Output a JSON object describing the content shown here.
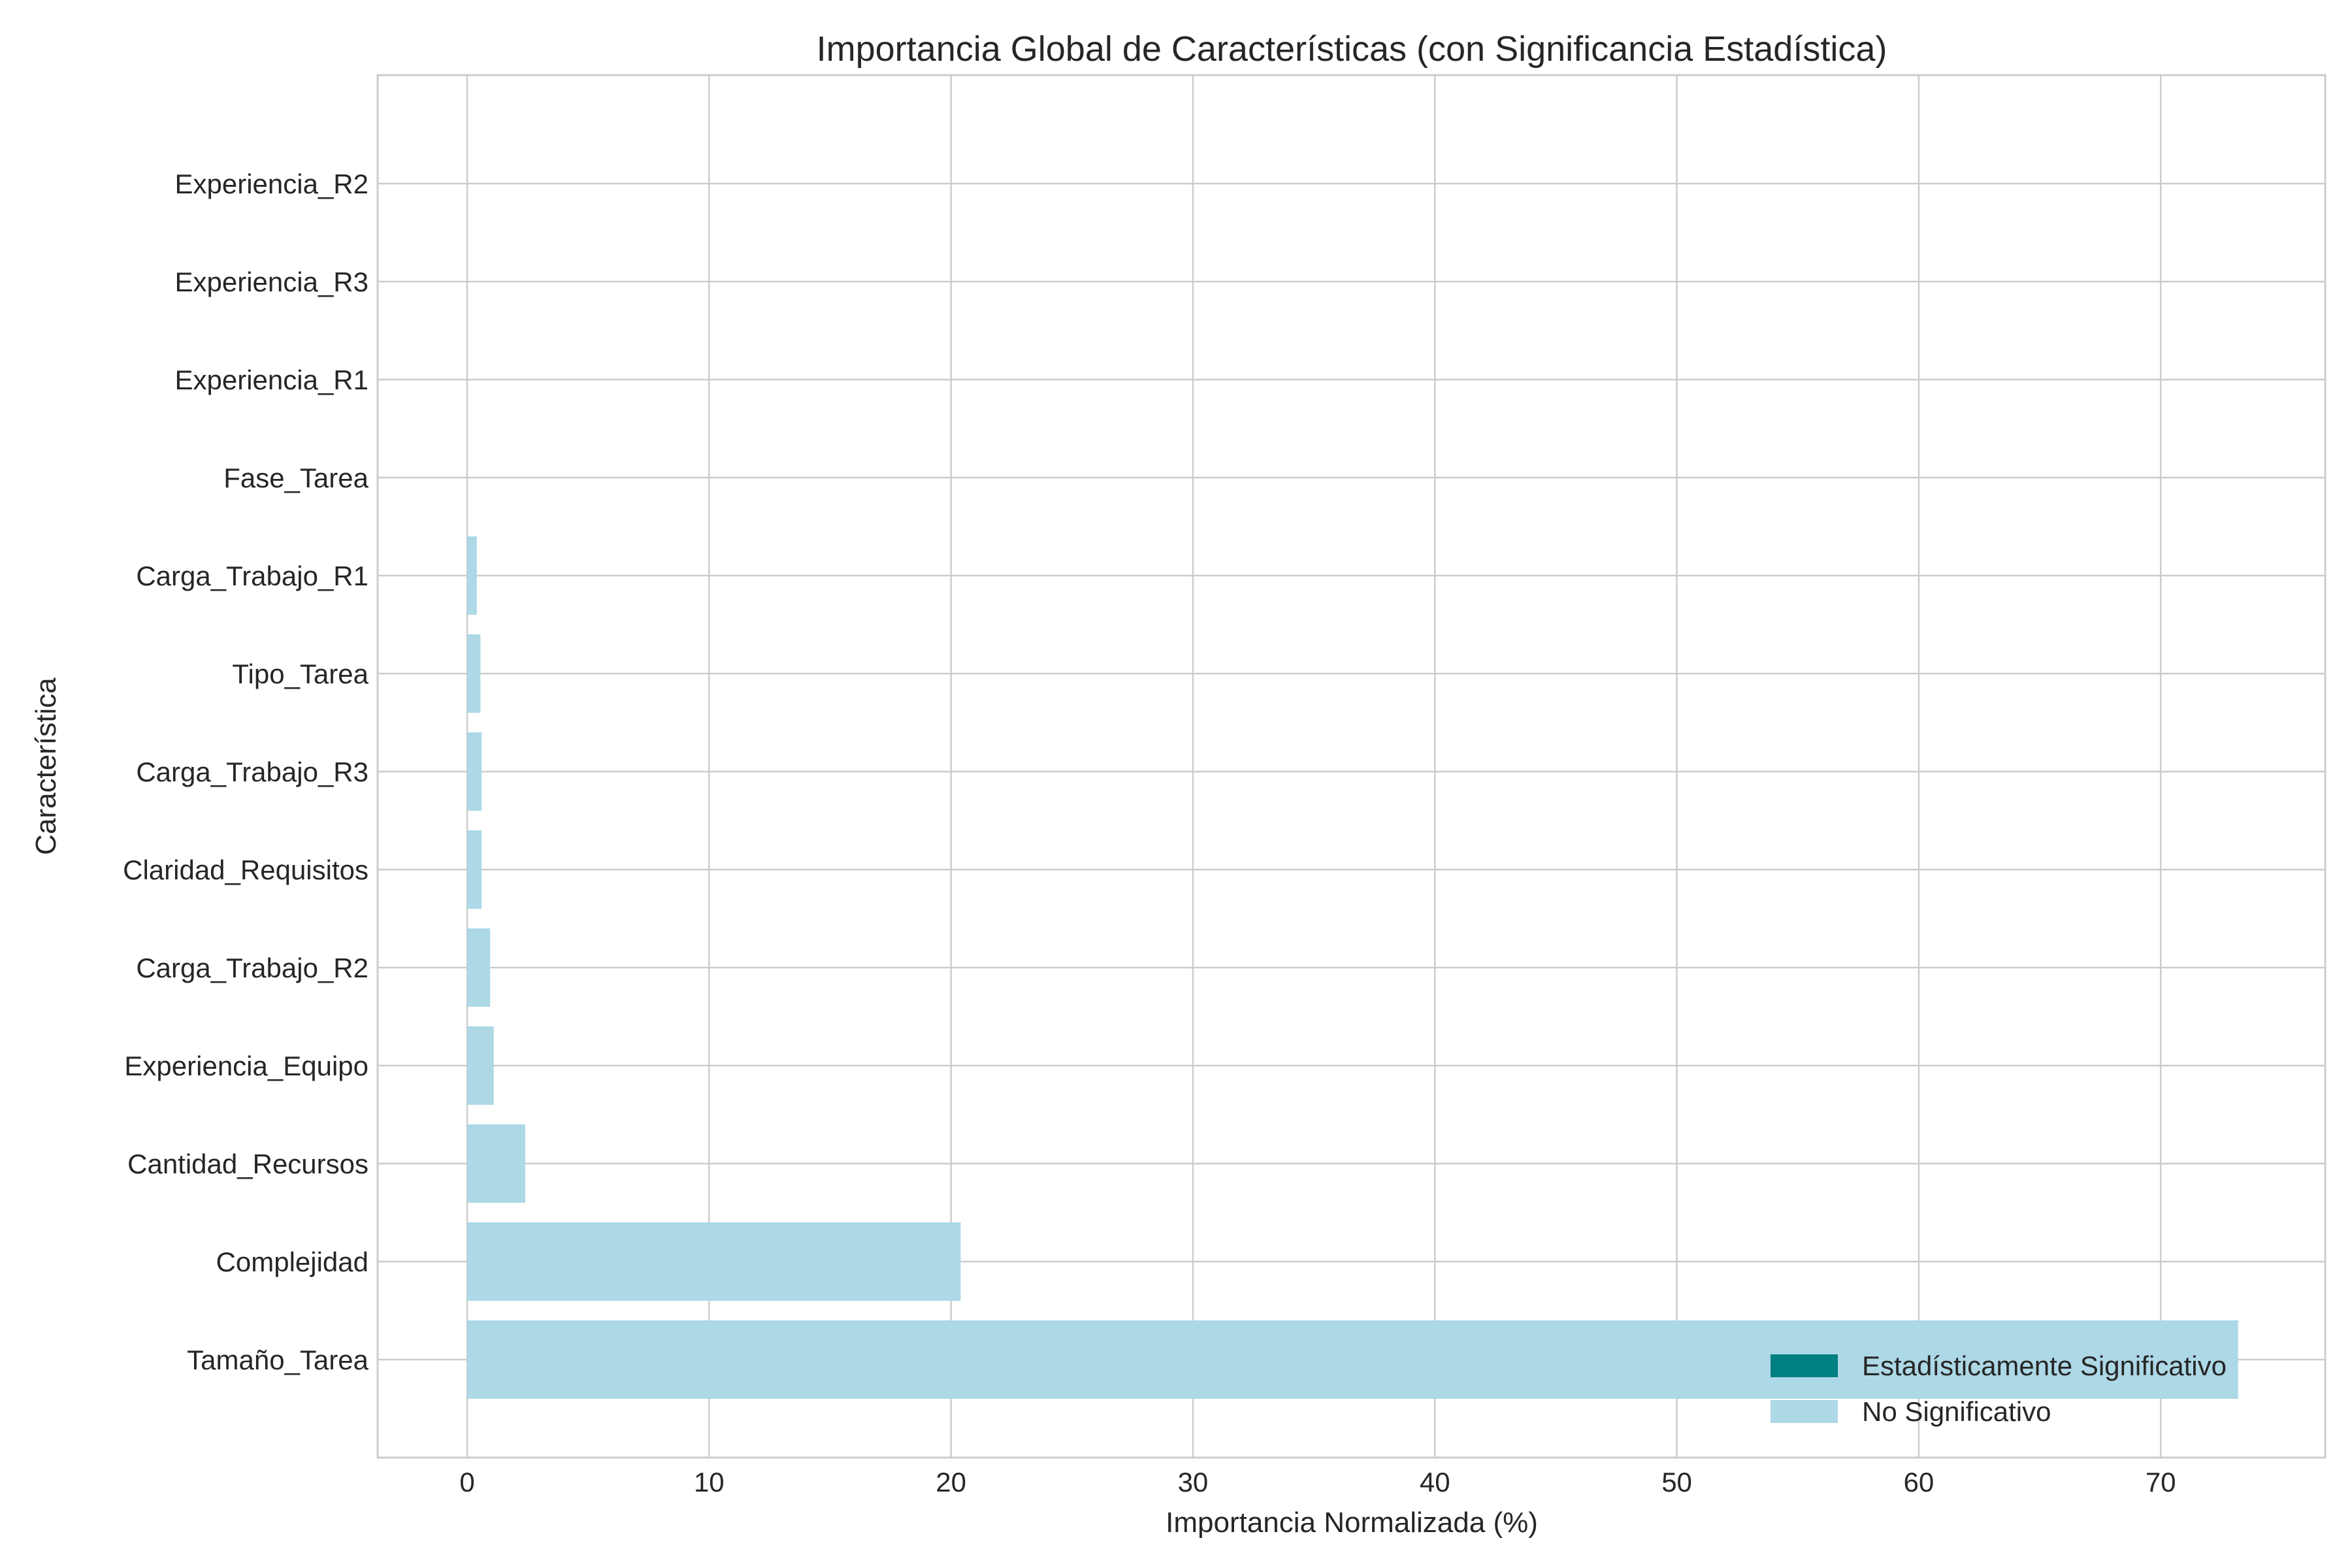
{
  "chart_data": {
    "type": "bar",
    "orientation": "horizontal",
    "title": "Importancia Global de Características (con Significancia Estadística)",
    "xlabel": "Importancia Normalizada (%)",
    "ylabel": "Característica",
    "xlim": [
      -3.7,
      76.8
    ],
    "xticks": [
      0,
      10,
      20,
      30,
      40,
      50,
      60,
      70
    ],
    "grid": true,
    "categories": [
      "Tamaño_Tarea",
      "Complejidad",
      "Cantidad_Recursos",
      "Experiencia_Equipo",
      "Carga_Trabajo_R2",
      "Claridad_Requisitos",
      "Carga_Trabajo_R3",
      "Tipo_Tarea",
      "Carga_Trabajo_R1",
      "Fase_Tarea",
      "Experiencia_R1",
      "Experiencia_R3",
      "Experiencia_R2"
    ],
    "values": [
      73.2,
      20.4,
      2.4,
      1.1,
      0.95,
      0.6,
      0.6,
      0.55,
      0.4,
      0.0,
      0.0,
      0.0,
      0.0
    ],
    "significant": [
      false,
      false,
      false,
      false,
      false,
      false,
      false,
      false,
      false,
      false,
      false,
      false,
      false
    ],
    "legend": {
      "placement": "lower-right",
      "entries": [
        {
          "label": "Estadísticamente Significativo",
          "color": "#008080"
        },
        {
          "label": "No Significativo",
          "color": "#add8e6"
        }
      ]
    },
    "colors": {
      "significant": "#008080",
      "not_significant": "#add8e6",
      "grid": "#cccccc",
      "axes": "#cccccc",
      "text": "#262626"
    }
  }
}
